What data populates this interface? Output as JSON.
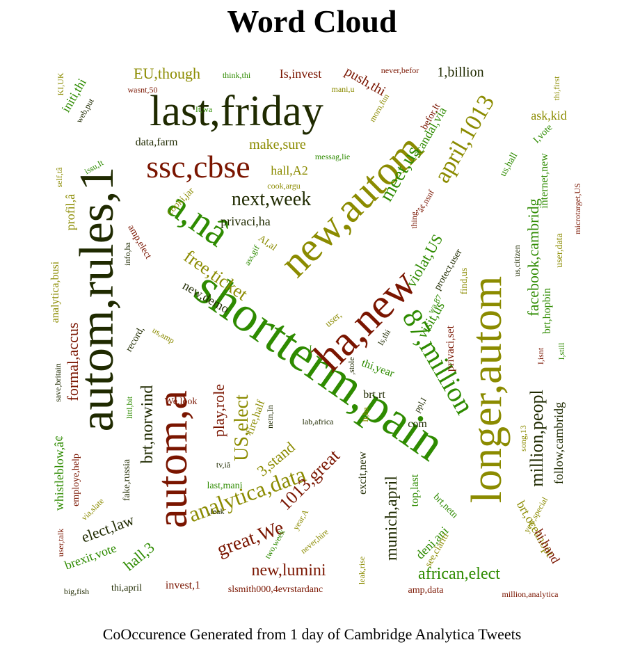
{
  "title": "Word Cloud",
  "caption": "CoOccurence Generated from 1 day of Cambridge Analytica Tweets",
  "colors": {
    "darkgreen": "#1f2a00",
    "green": "#2e8b00",
    "red": "#7a1500",
    "olive": "#8b8b00"
  },
  "words": [
    {
      "text": "shortterm,pain",
      "color": "green"
    },
    {
      "text": "last,friday",
      "color": "darkgreen"
    },
    {
      "text": "autom,rules,1",
      "color": "darkgreen"
    },
    {
      "text": "longer,autom",
      "color": "olive"
    },
    {
      "text": "new,autom",
      "color": "olive"
    },
    {
      "text": "autom,a",
      "color": "red"
    },
    {
      "text": "ha,new",
      "color": "red"
    },
    {
      "text": "ssc,cbse",
      "color": "red"
    },
    {
      "text": "a,nâ",
      "color": "green"
    },
    {
      "text": "87,million",
      "color": "green"
    },
    {
      "text": "next,week",
      "color": "darkgreen"
    },
    {
      "text": "april,1013",
      "color": "olive"
    },
    {
      "text": "meet,us",
      "color": "green"
    },
    {
      "text": "analytica,data",
      "color": "olive"
    },
    {
      "text": "1013,great",
      "color": "red"
    },
    {
      "text": "great,We",
      "color": "red"
    },
    {
      "text": "new,lumini",
      "color": "red"
    },
    {
      "text": "african,elect",
      "color": "green"
    },
    {
      "text": "million,peopl",
      "color": "darkgreen"
    },
    {
      "text": "munich,april",
      "color": "darkgreen"
    },
    {
      "text": "US,elect",
      "color": "olive"
    },
    {
      "text": "brt,norwind",
      "color": "darkgreen"
    },
    {
      "text": "elect,law",
      "color": "darkgreen"
    },
    {
      "text": "facebook,cambridg",
      "color": "green"
    },
    {
      "text": "violat,US",
      "color": "green"
    },
    {
      "text": "visit,us",
      "color": "green"
    },
    {
      "text": "free,ticket",
      "color": "olive"
    },
    {
      "text": "make,sure",
      "color": "olive"
    },
    {
      "text": "EU,though",
      "color": "olive"
    },
    {
      "text": "formal,accus",
      "color": "red"
    },
    {
      "text": "3,stand",
      "color": "olive"
    },
    {
      "text": "hall,3",
      "color": "green"
    },
    {
      "text": "brexit,vote",
      "color": "green"
    },
    {
      "text": "play,role",
      "color": "red"
    },
    {
      "text": "1,billion",
      "color": "darkgreen"
    },
    {
      "text": "push,thi",
      "color": "red"
    },
    {
      "text": "scandal,via",
      "color": "green"
    },
    {
      "text": "Is,invest",
      "color": "red"
    },
    {
      "text": "ask,kid",
      "color": "olive"
    },
    {
      "text": "data,farm",
      "color": "darkgreen"
    },
    {
      "text": "hall,A2",
      "color": "olive"
    },
    {
      "text": "privaci,ha",
      "color": "darkgreen"
    },
    {
      "text": "new,demo",
      "color": "darkgreen"
    },
    {
      "text": "deni,ani",
      "color": "green"
    },
    {
      "text": "brt,oceanopt",
      "color": "olive"
    },
    {
      "text": "hi,hand",
      "color": "red"
    },
    {
      "text": "follow,cambridg",
      "color": "darkgreen"
    },
    {
      "text": "analytica,busi",
      "color": "olive"
    },
    {
      "text": "initi,thi",
      "color": "green"
    },
    {
      "text": "profil,â",
      "color": "olive"
    },
    {
      "text": "whistleblow,â¢",
      "color": "green"
    },
    {
      "text": "fire,half",
      "color": "olive"
    },
    {
      "text": "thi,year",
      "color": "green"
    },
    {
      "text": "brt,rt",
      "color": "darkgreen"
    },
    {
      "text": "com",
      "color": "darkgreen"
    },
    {
      "text": "excit,new",
      "color": "darkgreen"
    },
    {
      "text": "top,last",
      "color": "green"
    },
    {
      "text": "invest,1",
      "color": "red"
    },
    {
      "text": "slsmith000,4evrstardanc",
      "color": "red"
    },
    {
      "text": "amp,data",
      "color": "red"
    },
    {
      "text": "thi,april",
      "color": "darkgreen"
    },
    {
      "text": "million,analytica",
      "color": "red"
    },
    {
      "text": "internet,new",
      "color": "green"
    },
    {
      "text": "user,data",
      "color": "olive"
    },
    {
      "text": "brt,hopbin",
      "color": "green"
    },
    {
      "text": "privaci,set",
      "color": "red"
    },
    {
      "text": "protect,user",
      "color": "darkgreen"
    },
    {
      "text": "find,us",
      "color": "olive"
    },
    {
      "text": "see,clariti",
      "color": "olive"
    },
    {
      "text": "brt,netn",
      "color": "green"
    },
    {
      "text": "last,mani",
      "color": "green"
    },
    {
      "text": "fake,russia",
      "color": "darkgreen"
    },
    {
      "text": "employe,help",
      "color": "red"
    },
    {
      "text": "record,",
      "color": "darkgreen"
    },
    {
      "text": "We,look",
      "color": "red"
    },
    {
      "text": "amp,elect",
      "color": "red"
    },
    {
      "text": "cooki,jar",
      "color": "olive"
    },
    {
      "text": "AI,al",
      "color": "olive"
    },
    {
      "text": "us,hall",
      "color": "green"
    },
    {
      "text": "I,vote",
      "color": "green"
    },
    {
      "text": "befor,It",
      "color": "red"
    },
    {
      "text": "think,thi",
      "color": "green"
    },
    {
      "text": "wasnt,50",
      "color": "red"
    },
    {
      "text": "never,befor",
      "color": "red"
    },
    {
      "text": "mani,u",
      "color": "olive"
    },
    {
      "text": "It,wa",
      "color": "green"
    },
    {
      "text": "web,put",
      "color": "darkgreen"
    },
    {
      "text": "KI,UK",
      "color": "olive"
    },
    {
      "text": "issu,It",
      "color": "green"
    },
    {
      "text": "self,tâ",
      "color": "olive"
    },
    {
      "text": "messag,lie",
      "color": "green"
    },
    {
      "text": "cook,argu",
      "color": "olive"
    },
    {
      "text": "morn,fun",
      "color": "olive"
    },
    {
      "text": "thi,first",
      "color": "olive"
    },
    {
      "text": "microtarget,US",
      "color": "red"
    },
    {
      "text": "us,citizen",
      "color": "darkgreen"
    },
    {
      "text": "info,ha",
      "color": "darkgreen"
    },
    {
      "text": "wa,87",
      "color": "green"
    },
    {
      "text": "ass,gif",
      "color": "green"
    },
    {
      "text": "us,amp",
      "color": "olive"
    },
    {
      "text": "littl,bit",
      "color": "green"
    },
    {
      "text": "save,britain",
      "color": "darkgreen"
    },
    {
      "text": "netn,In",
      "color": "darkgreen"
    },
    {
      "text": "lab,africa",
      "color": "darkgreen"
    },
    {
      "text": "tv,iâ",
      "color": "darkgreen"
    },
    {
      "text": ",leak",
      "color": "darkgreen"
    },
    {
      "text": "via,slate",
      "color": "olive"
    },
    {
      "text": "user,talk",
      "color": "red"
    },
    {
      "text": "big,fish",
      "color": "darkgreen"
    },
    {
      "text": "two,week",
      "color": "green"
    },
    {
      "text": "year,A",
      "color": "olive"
    },
    {
      "text": "never,hire",
      "color": "olive"
    },
    {
      "text": "leak,rise",
      "color": "olive"
    },
    {
      "text": "song,13",
      "color": "olive"
    },
    {
      "text": "year,special",
      "color": "olive"
    },
    {
      "text": "I,isnt",
      "color": "red"
    },
    {
      "text": "I,still",
      "color": "green"
    },
    {
      "text": ",stole",
      "color": "darkgreen"
    },
    {
      "text": "It,ha",
      "color": "olive"
    },
    {
      "text": "ppl,I",
      "color": "darkgreen"
    },
    {
      "text": "Is,thi",
      "color": "darkgreen"
    },
    {
      "text": "user,",
      "color": "olive"
    },
    {
      "text": "â¢,nsnf",
      "color": "red"
    },
    {
      "text": "thing,",
      "color": "red"
    },
    {
      "text": "I,",
      "color": "green"
    }
  ]
}
